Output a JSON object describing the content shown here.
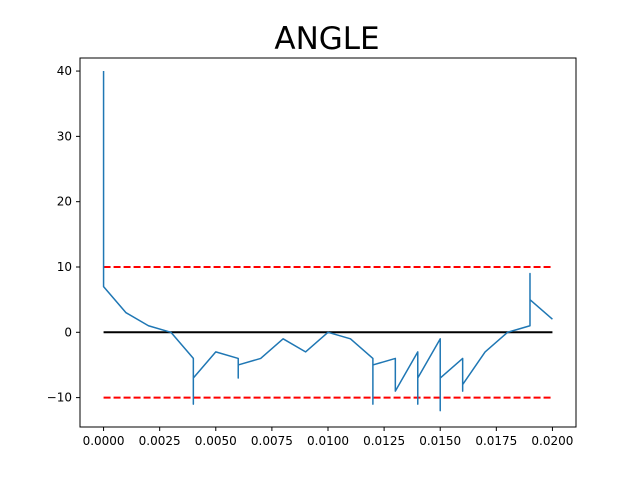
{
  "chart_data": {
    "type": "line",
    "title": "ANGLE",
    "xlabel": "",
    "ylabel": "",
    "xlim": [
      -0.00105,
      0.02105
    ],
    "ylim": [
      -14.5,
      42.0
    ],
    "x_ticks": [
      0.0,
      0.0025,
      0.005,
      0.0075,
      0.01,
      0.0125,
      0.015,
      0.0175,
      0.02
    ],
    "x_tick_labels": [
      "0.0000",
      "0.0025",
      "0.0050",
      "0.0075",
      "0.0100",
      "0.0125",
      "0.0150",
      "0.0175",
      "0.0200"
    ],
    "y_ticks": [
      -10,
      0,
      10,
      20,
      30,
      40
    ],
    "y_tick_labels": [
      "−10",
      "0",
      "10",
      "20",
      "30",
      "40"
    ],
    "grid": false,
    "series": [
      {
        "color": "#1f77b4",
        "style": "solid",
        "x": [
          0.0,
          0.0,
          0.0,
          0.001,
          0.002,
          0.003,
          0.004,
          0.004,
          0.004,
          0.005,
          0.006,
          0.006,
          0.006,
          0.007,
          0.008,
          0.009,
          0.01,
          0.011,
          0.012,
          0.012,
          0.012,
          0.013,
          0.013,
          0.014,
          0.014,
          0.014,
          0.015,
          0.015,
          0.015,
          0.016,
          0.016,
          0.016,
          0.017,
          0.018,
          0.019,
          0.019,
          0.019,
          0.02
        ],
        "y": [
          40,
          7,
          7,
          3,
          1,
          0,
          -4,
          -11,
          -7,
          -3,
          -4,
          -7,
          -5,
          -4,
          -1,
          -3,
          0,
          -1,
          -4,
          -11,
          -5,
          -4,
          -9,
          -3,
          -11,
          -7,
          -1,
          -12,
          -7,
          -4,
          -9,
          -8,
          -3,
          0,
          1,
          9,
          5,
          2
        ]
      }
    ],
    "reference_lines": [
      {
        "y": 10,
        "xrange": [
          0.0,
          0.02
        ],
        "color": "#ff0000",
        "style": "dashed"
      },
      {
        "y": -10,
        "xrange": [
          0.0,
          0.02
        ],
        "color": "#ff0000",
        "style": "dashed"
      },
      {
        "y": 0,
        "xrange": [
          0.0,
          0.02
        ],
        "color": "#000000",
        "style": "solid"
      }
    ]
  }
}
